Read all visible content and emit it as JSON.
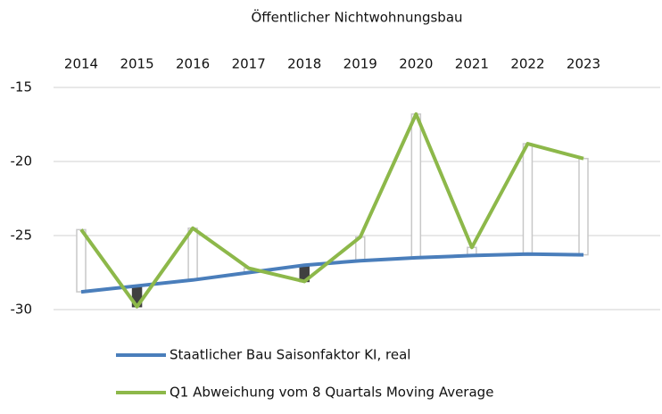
{
  "chart_data": {
    "type": "line",
    "title": "Öffentlicher Nichtwohnungsbau",
    "categories": [
      "2014",
      "2015",
      "2016",
      "2017",
      "2018",
      "2019",
      "2020",
      "2021",
      "2022",
      "2023"
    ],
    "series": [
      {
        "name": "Staatlicher Bau  Saisonfaktor KI, real",
        "color": "#4a7ebb",
        "values": [
          -28.8,
          -28.4,
          -28.0,
          -27.5,
          -27.0,
          -26.7,
          -26.5,
          -26.35,
          -26.25,
          -26.3
        ]
      },
      {
        "name": "Q1 Abweichung vom 8 Quartals Moving Average",
        "color": "#8db84a",
        "values": [
          -24.6,
          -29.8,
          -24.5,
          -27.2,
          -28.1,
          -25.1,
          -16.8,
          -25.8,
          -18.8,
          -19.8
        ]
      }
    ],
    "up_down_bars": {
      "up_color": "#ffffff",
      "down_color": "#404040"
    },
    "ylim": [
      -30,
      -15
    ],
    "yticks": [
      -15,
      -20,
      -25,
      -30
    ],
    "grid": true,
    "legend": "bottom"
  }
}
